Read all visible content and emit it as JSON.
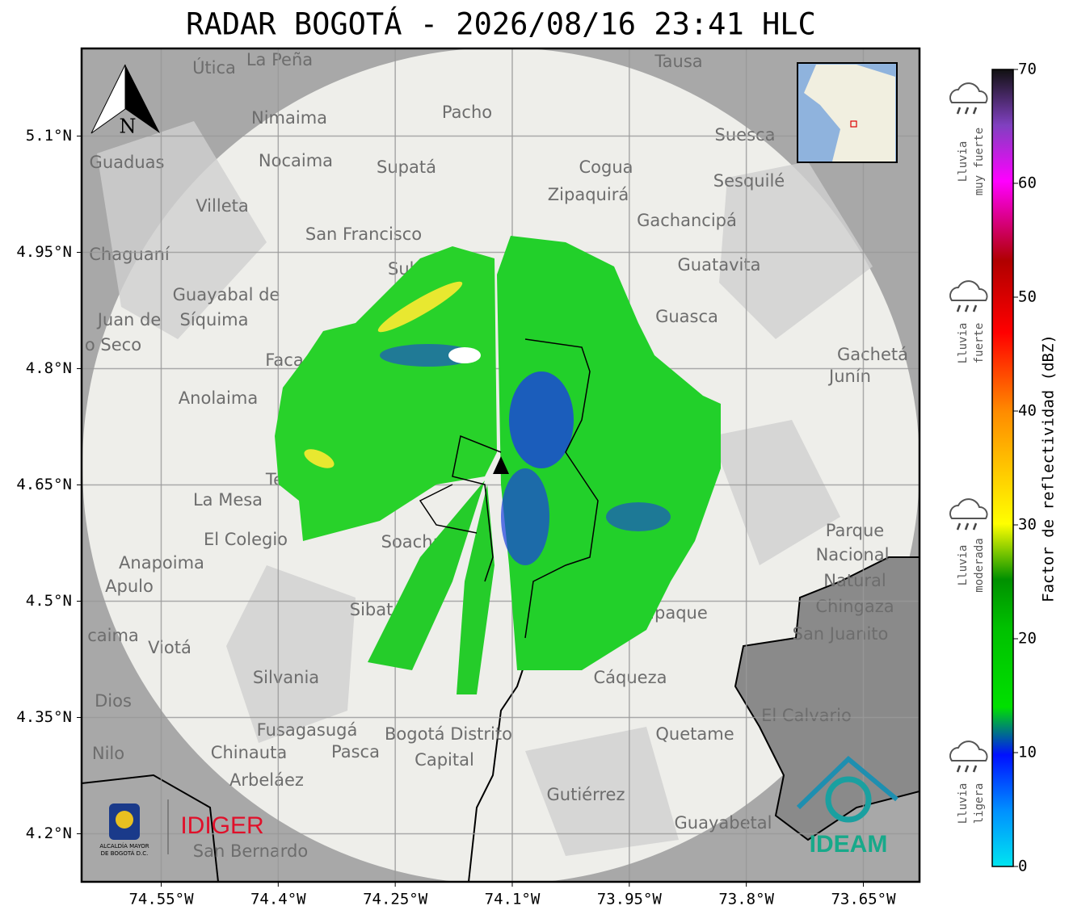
{
  "title": "RADAR BOGOTÁ - 2026/08/16 23:41 HLC",
  "map": {
    "xlim": [
      -74.652,
      -73.578
    ],
    "ylim": [
      4.138,
      5.213
    ],
    "xticks": [
      {
        "value": -74.55,
        "label": "74.55°W"
      },
      {
        "value": -74.4,
        "label": "74.4°W"
      },
      {
        "value": -74.25,
        "label": "74.25°W"
      },
      {
        "value": -74.1,
        "label": "74.1°W"
      },
      {
        "value": -73.95,
        "label": "73.95°W"
      },
      {
        "value": -73.8,
        "label": "73.8°W"
      },
      {
        "value": -73.65,
        "label": "73.65°W"
      }
    ],
    "yticks": [
      {
        "value": 5.1,
        "label": "5.1°N"
      },
      {
        "value": 4.95,
        "label": "4.95°N"
      },
      {
        "value": 4.8,
        "label": "4.8°N"
      },
      {
        "value": 4.65,
        "label": "4.65°N"
      },
      {
        "value": 4.5,
        "label": "4.5°N"
      },
      {
        "value": 4.35,
        "label": "4.35°N"
      },
      {
        "value": 4.2,
        "label": "4.2°N"
      }
    ],
    "grid": true,
    "north": "N",
    "places": [
      "La Peña",
      "Útica",
      "Tausa",
      "Pacho",
      "Nimaima",
      "Nocaima",
      "Supatá",
      "Guaduas",
      "Suesca",
      "Cogua",
      "Sesquilé",
      "Zipaquirá",
      "Gachancipá",
      "Villeta",
      "San Francisco",
      "Chaguaní",
      "Guatavita",
      "Guayabal de",
      "Síquima",
      "Guasca",
      "Juan de",
      "o Seco",
      "Faca",
      "Gachetá",
      "Junín",
      "Anolaima",
      "La Mesa",
      "El Colegio",
      "Soacha",
      "Anapoima",
      "Apulo",
      "Parque",
      "Nacional",
      "Natural",
      "Chingaza",
      "San Juanito",
      "Viotá",
      "caima",
      "Silvania",
      "Sibaté",
      "Chipaque",
      "Cáqueza",
      "Dios",
      "El Calvario",
      "Fusagasugá",
      "Pasca",
      "Bogotá Distrito",
      "Capital",
      "Quetame",
      "Chinauta",
      "Nilo",
      "Arbeláez",
      "Gutiérrez",
      "Guayabetal",
      "San Bernardo",
      "Te",
      "Sub"
    ]
  },
  "colorbar": {
    "label": "Factor de reflectividad (dBZ)",
    "lim": [
      0,
      70
    ],
    "ticks": [
      0,
      10,
      20,
      30,
      40,
      50,
      60,
      70
    ]
  },
  "intensity": [
    [
      "Lluvia",
      "muy fuerte"
    ],
    [
      "Lluvia",
      "fuerte"
    ],
    [
      "Lluvia",
      "moderada"
    ],
    [
      "Lluvia",
      "ligera"
    ]
  ],
  "logos": {
    "alcaldia": [
      "ALCALDÍA MAYOR",
      "DE BOGOTÁ D.C."
    ],
    "idiger": "IDIGER",
    "ideam": "IDEAM"
  }
}
